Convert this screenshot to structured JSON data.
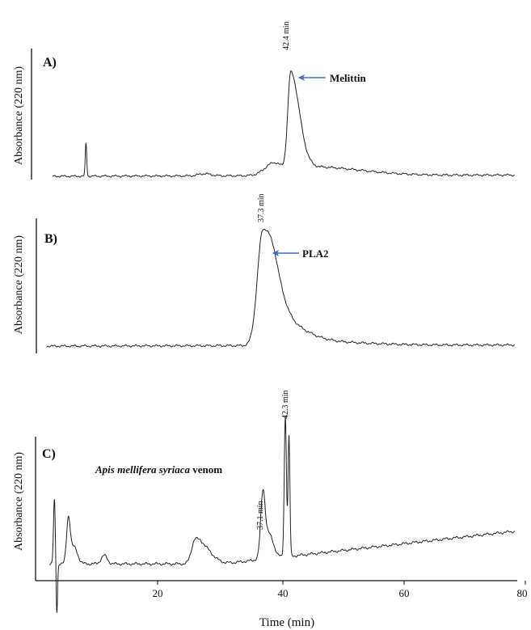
{
  "colors": {
    "trace": "#222222",
    "arrow": "#3a6fc4",
    "text": "#111111"
  },
  "chart_data": [
    {
      "type": "line",
      "panel_label": "A)",
      "ylabel": "Absorbance (220 nm)",
      "xlim": [
        0,
        80
      ],
      "peaks": [
        {
          "time": 7.5,
          "height": 0.3
        },
        {
          "time": 42.4,
          "height": 0.92,
          "label": "42.4 min"
        }
      ],
      "annotation": {
        "text": "Melittin",
        "peak_time": 42.4
      }
    },
    {
      "type": "line",
      "panel_label": "B)",
      "ylabel": "Absorbance (220 nm)",
      "xlim": [
        0,
        80
      ],
      "peaks": [
        {
          "time": 37.3,
          "height": 0.95,
          "label": "37.3 min"
        }
      ],
      "annotation": {
        "text": "PLA2",
        "peak_time": 37.3
      }
    },
    {
      "type": "line",
      "panel_label": "C)",
      "subtitle_italic": "Apis mellifera syriaca",
      "subtitle_rest": " venom",
      "ylabel": "Absorbance (220 nm)",
      "xlabel": "Time (min)",
      "xlim": [
        0,
        80
      ],
      "xticks": [
        "20",
        "40",
        "60",
        "80"
      ],
      "peaks": [
        {
          "time": 37.1,
          "height": 0.4,
          "label": "37.1 min"
        },
        {
          "time": 42.3,
          "height": 1.0,
          "label": "42.3 min"
        }
      ]
    }
  ]
}
